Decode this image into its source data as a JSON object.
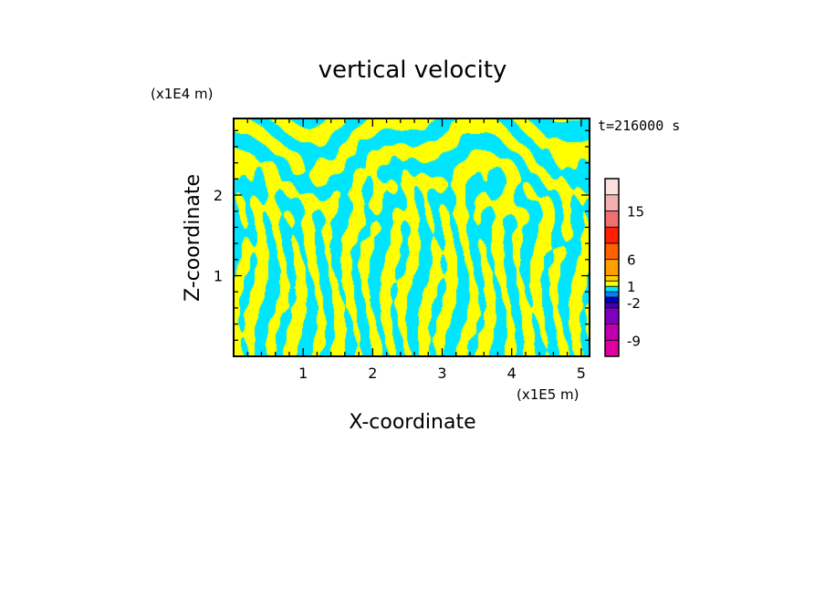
{
  "chart_data": {
    "type": "heatmap",
    "title": "vertical velocity",
    "xlabel": "X-coordinate",
    "ylabel": "Z-coordinate",
    "x_unit": "(x1E5 m)",
    "y_unit": "(x1E4 m)",
    "time_label": "t=216000 s",
    "xlim": [
      0,
      5.12
    ],
    "ylim": [
      0,
      2.95
    ],
    "x_ticks": [
      1,
      2,
      3,
      4,
      5
    ],
    "x_tick_labels": [
      "1",
      "2",
      "3",
      "4",
      "5"
    ],
    "y_ticks": [
      1,
      2
    ],
    "y_tick_labels": [
      "1",
      "2"
    ],
    "field_colors": {
      "positive": "#ffff00",
      "negative": "#00e5ff"
    },
    "colorbar": {
      "levels": [
        -12,
        -9,
        -6,
        -3,
        -2,
        -1,
        0,
        1,
        2,
        3,
        6,
        9,
        12,
        15,
        18,
        21
      ],
      "colors": [
        "#e000a0",
        "#c000b0",
        "#8000c0",
        "#4000b0",
        "#0000c0",
        "#0080ff",
        "#00e5ff",
        "#ffff00",
        "#ffd000",
        "#ffa000",
        "#ff6000",
        "#ff2000",
        "#f07070",
        "#f4b0b0",
        "#fce0e0"
      ],
      "tick_values": [
        -9,
        -2,
        1,
        6,
        15
      ],
      "tick_labels": [
        "-9",
        "-2",
        "1",
        "6",
        "15"
      ]
    }
  }
}
